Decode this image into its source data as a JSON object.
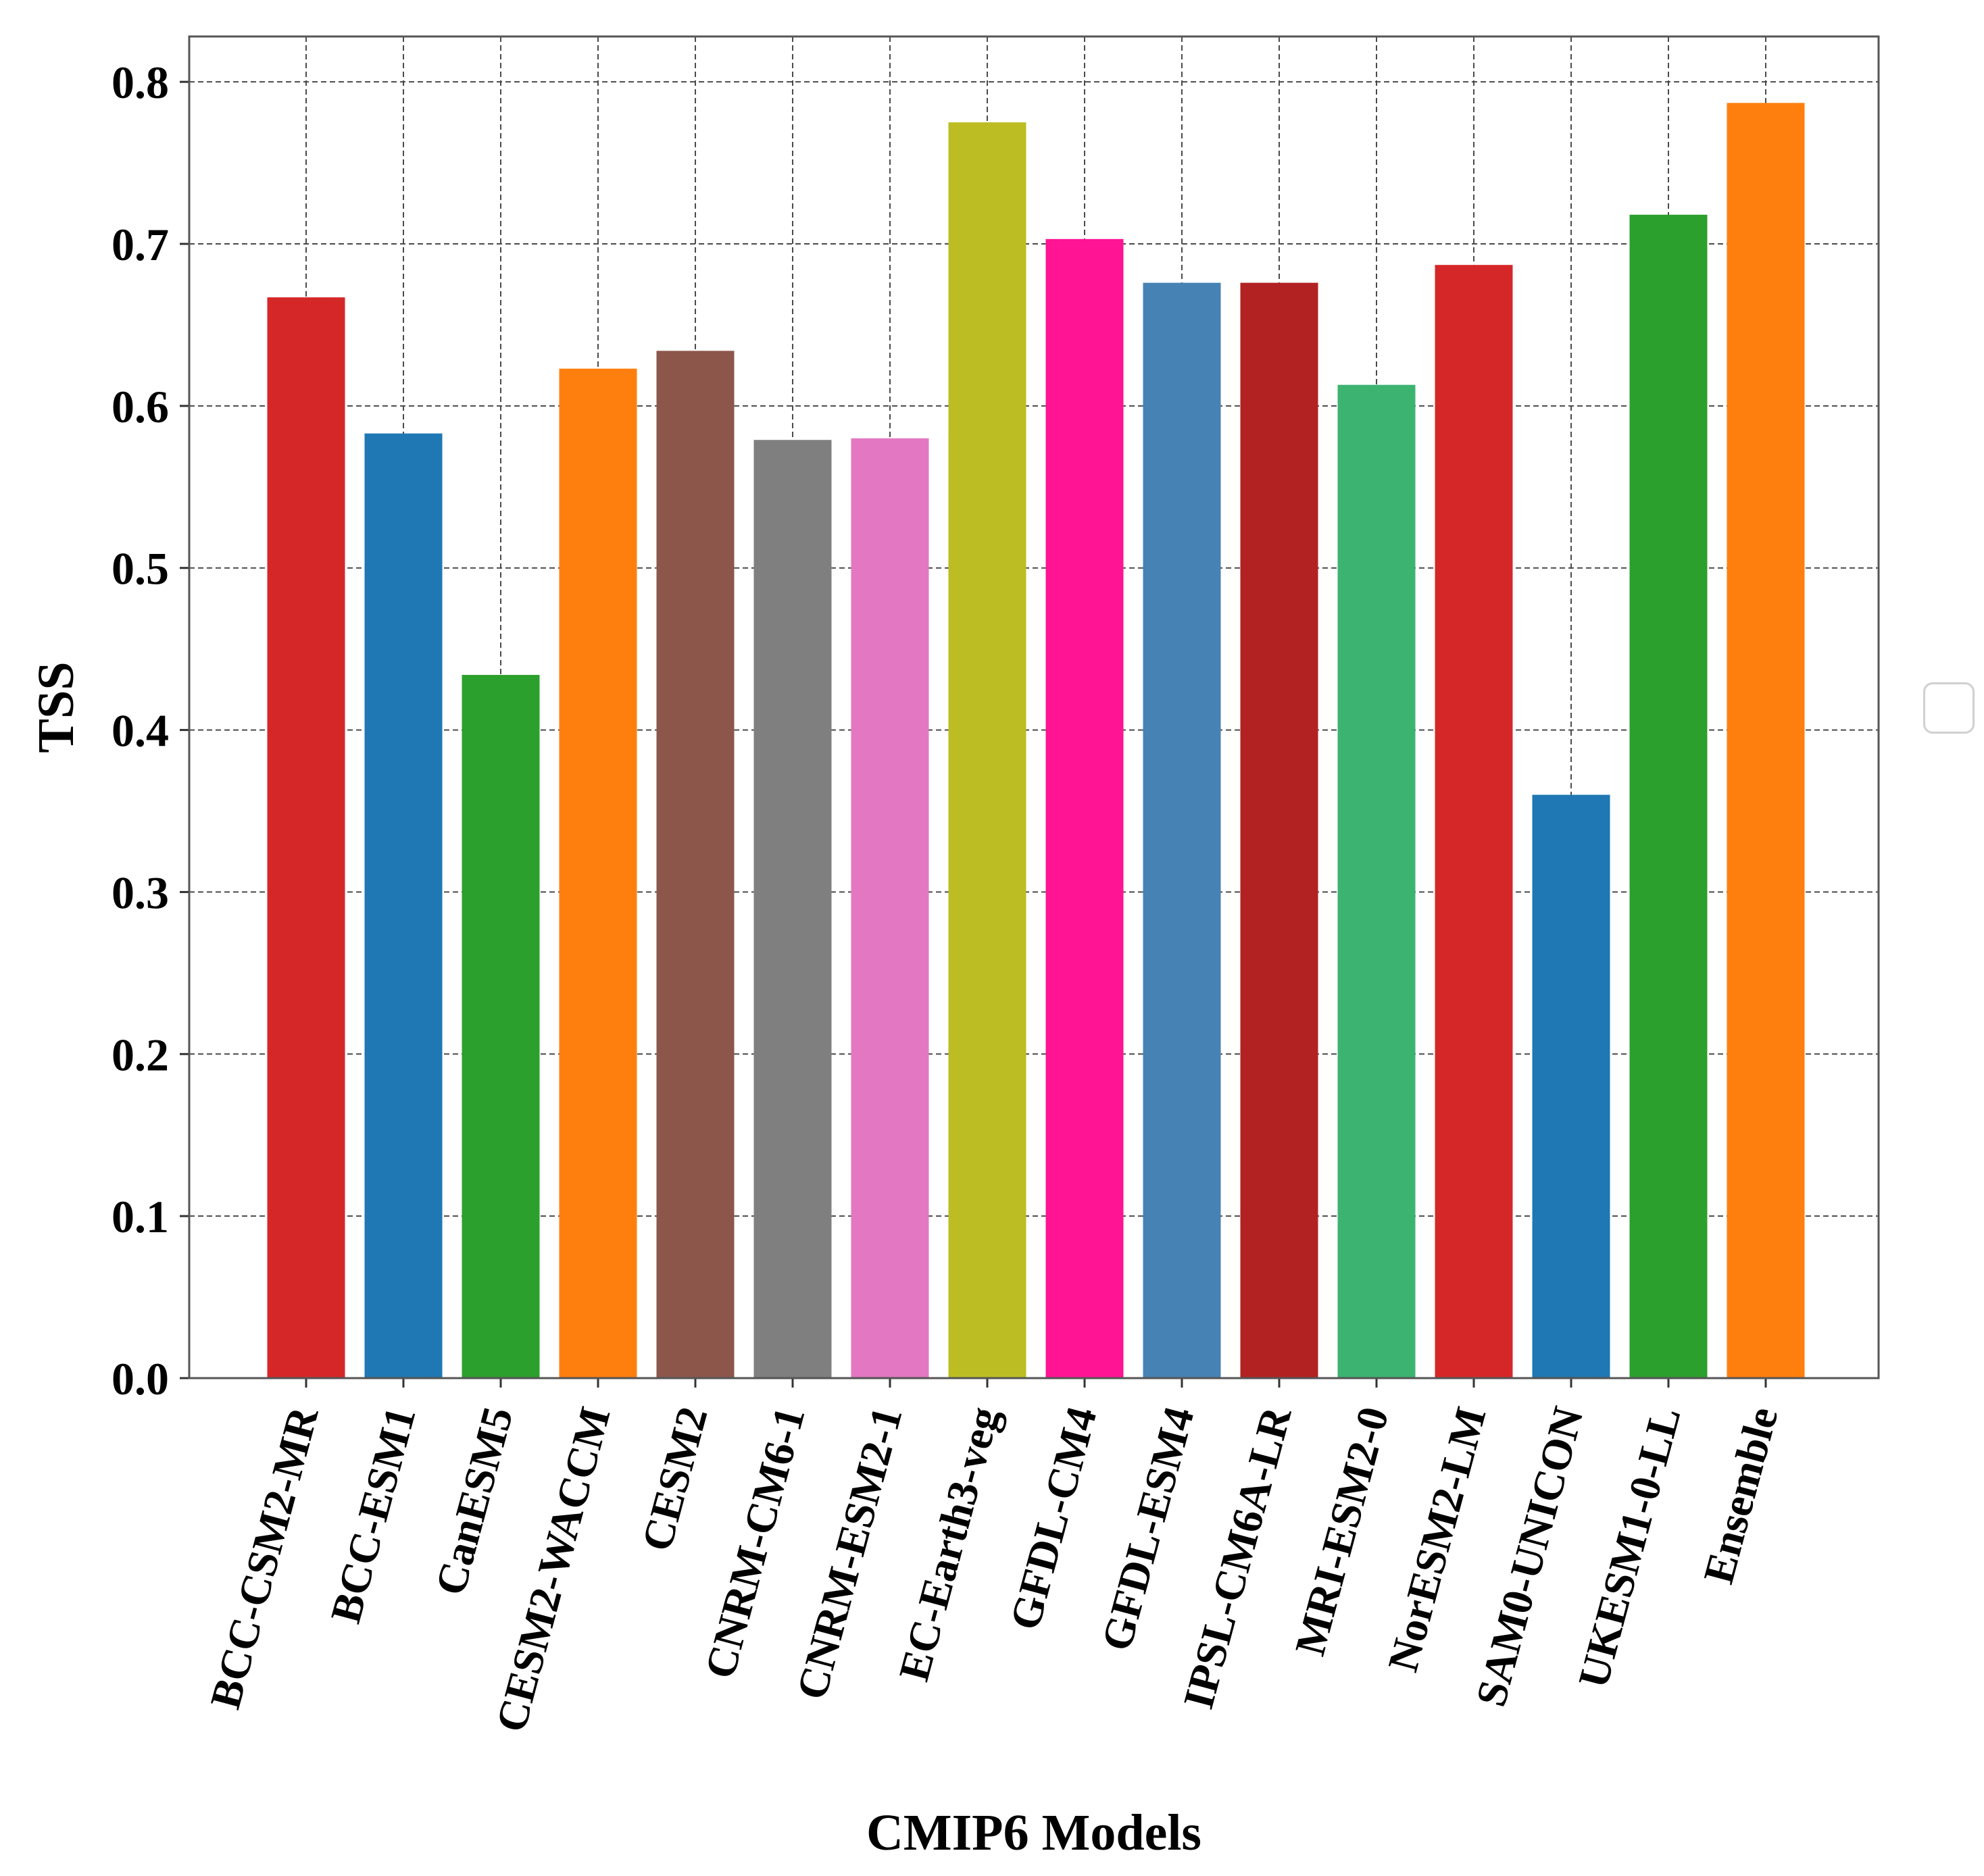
{
  "chart_data": {
    "type": "bar",
    "xlabel": "CMIP6 Models",
    "ylabel": "TSS",
    "ylim": [
      0,
      0.828
    ],
    "yticks": [
      "0.0",
      "0.1",
      "0.2",
      "0.3",
      "0.4",
      "0.5",
      "0.6",
      "0.7",
      "0.8"
    ],
    "grid": true,
    "categories": [
      "BCC-CSM2-MR",
      "BCC-ESM1",
      "CanESM5",
      "CESM2-WACCM",
      "CESM2",
      "CNRM-CM6-1",
      "CNRM-ESM2-1",
      "EC-Earth3-veg",
      "GFDL-CM4",
      "GFDL-ESM4",
      "IPSL-CM6A-LR",
      "MRI-ESM2-0",
      "NorESM2-LM",
      "SAM0-UNICON",
      "UKESM1-0-LL",
      "Ensemble"
    ],
    "values": [
      0.667,
      0.583,
      0.434,
      0.623,
      0.634,
      0.579,
      0.58,
      0.775,
      0.703,
      0.676,
      0.676,
      0.613,
      0.687,
      0.36,
      0.718,
      0.787
    ],
    "colors": [
      "#d62728",
      "#1f77b4",
      "#2ca02c",
      "#ff7f0e",
      "#8c564b",
      "#7f7f7f",
      "#e377c2",
      "#bcbd22",
      "#ff1493",
      "#4682b4",
      "#b22222",
      "#3cb371",
      "#d62728",
      "#1f77b4",
      "#2ca02c",
      "#ff7f0e"
    ],
    "legend": "right"
  }
}
